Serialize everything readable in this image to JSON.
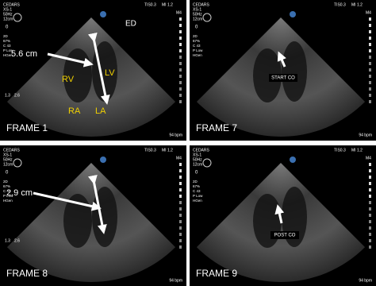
{
  "panels": [
    {
      "frame": "FRAME 1",
      "bpm": "94 bpm",
      "header": [
        "CEDARS",
        "XS-1",
        "50Hz",
        "12cm"
      ],
      "tis": "TIS0.3",
      "mi": "MI 1.2",
      "probe": "M4",
      "depth": "0",
      "settings": [
        "2D",
        "67%",
        "C 43",
        "P Low",
        "HGen"
      ],
      "scale": [
        "1.3",
        "2.6"
      ],
      "labels": [
        "ED",
        "5.6 cm",
        "RV",
        "LV",
        "RA",
        "LA"
      ]
    },
    {
      "frame": "FRAME 7",
      "bpm": "94 bpm",
      "header": [
        "CEDARS",
        "XS-1",
        "50Hz",
        "12cm"
      ],
      "tis": "TIS0.3",
      "mi": "MI 1.2",
      "probe": "M4",
      "depth": "0",
      "settings": [
        "2D",
        "67%",
        "C 43",
        "P Low",
        "HGen"
      ],
      "scale": [],
      "labels": [
        "START CO"
      ]
    },
    {
      "frame": "FRAME 8",
      "bpm": "94 bpm",
      "header": [
        "CEDARS",
        "XS-1",
        "50Hz",
        "12cm"
      ],
      "tis": "TIS0.3",
      "mi": "MI 1.2",
      "probe": "M4",
      "depth": "0",
      "settings": [
        "2D",
        "67%",
        "C 43",
        "P Low",
        "HGen"
      ],
      "scale": [
        "1.3",
        "2.6"
      ],
      "labels": [
        "2.9 cm"
      ]
    },
    {
      "frame": "FRAME 9",
      "bpm": "94 bpm",
      "header": [
        "CEDARS",
        "XS-1",
        "50Hz",
        "12cm"
      ],
      "tis": "TIS0.3",
      "mi": "MI 1.2",
      "probe": "M4",
      "depth": "0",
      "settings": [
        "2D",
        "67%",
        "C 43",
        "P Low",
        "HGen"
      ],
      "scale": [],
      "labels": [
        "POST CO"
      ]
    }
  ]
}
